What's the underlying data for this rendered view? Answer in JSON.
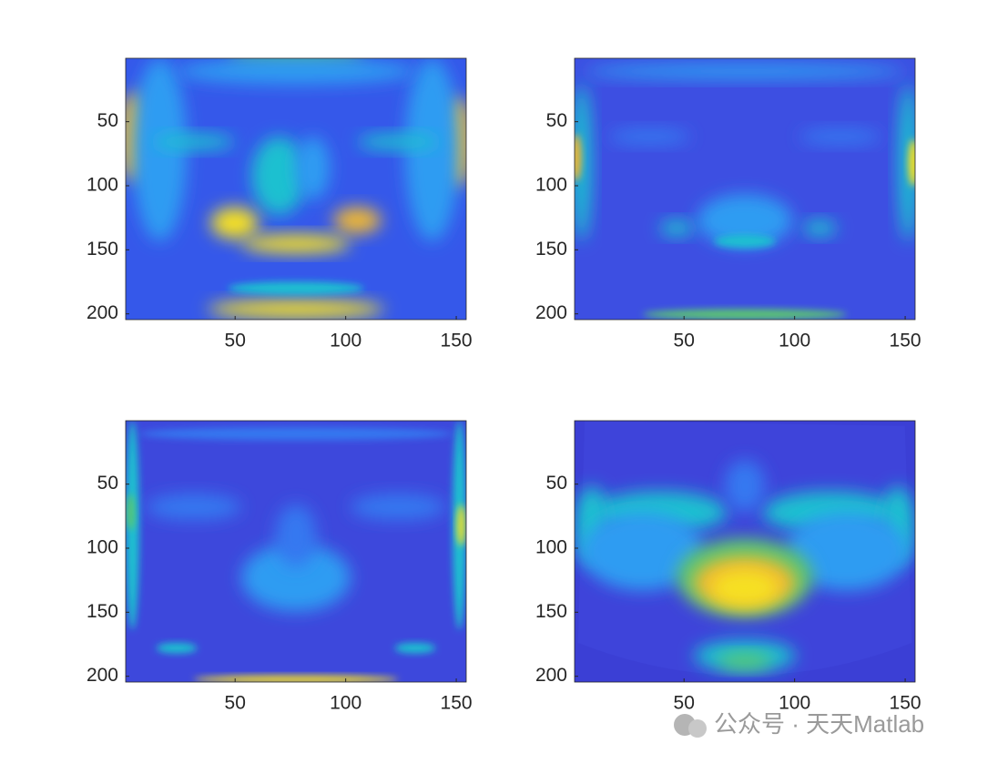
{
  "chart_data": [
    {
      "type": "image",
      "xlim": [
        0.5,
        154.5
      ],
      "ylim": [
        0.5,
        204.5
      ],
      "y_reversed": true,
      "xticks": [
        50,
        100,
        150
      ],
      "yticks": [
        50,
        100,
        150,
        200
      ],
      "colormap": "parula"
    },
    {
      "type": "image",
      "xlim": [
        0.5,
        154.5
      ],
      "ylim": [
        0.5,
        204.5
      ],
      "y_reversed": true,
      "xticks": [
        50,
        100,
        150
      ],
      "yticks": [
        50,
        100,
        150,
        200
      ],
      "colormap": "parula"
    },
    {
      "type": "image",
      "xlim": [
        0.5,
        154.5
      ],
      "ylim": [
        0.5,
        204.5
      ],
      "y_reversed": true,
      "xticks": [
        50,
        100,
        150
      ],
      "yticks": [
        50,
        100,
        150,
        200
      ],
      "colormap": "parula"
    },
    {
      "type": "image",
      "xlim": [
        0.5,
        154.5
      ],
      "ylim": [
        0.5,
        204.5
      ],
      "y_reversed": true,
      "xticks": [
        50,
        100,
        150
      ],
      "yticks": [
        50,
        100,
        150,
        200
      ],
      "colormap": "parula"
    }
  ],
  "watermark": "公众号 · 天天Matlab"
}
